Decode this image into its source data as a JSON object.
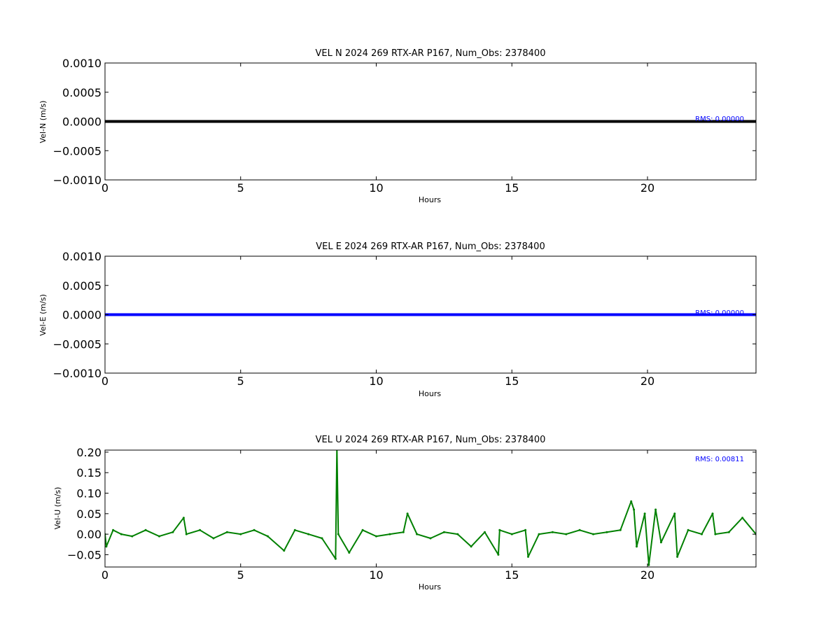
{
  "chart_data": [
    {
      "type": "line",
      "title": "VEL N 2024 269 RTX-AR  P167, Num_Obs: 2378400",
      "xlabel": "Hours",
      "ylabel": "Vel-N (m/s)",
      "xlim": [
        0,
        24
      ],
      "ylim": [
        -0.001,
        0.001
      ],
      "xticks": [
        "0",
        "5",
        "10",
        "15",
        "20"
      ],
      "yticks": [
        "−0.0010",
        "−0.0005",
        "0.0000",
        "0.0005",
        "0.0010"
      ],
      "grid": false,
      "series": [
        {
          "color": "#000000",
          "x": [
            0,
            2.0,
            2.05,
            4.0,
            4.05,
            8.95,
            9.0,
            24
          ],
          "y": [
            0,
            0,
            0,
            0,
            0,
            0,
            0,
            0
          ]
        }
      ],
      "annotation": "RMS:  0.00000"
    },
    {
      "type": "line",
      "title": "VEL E 2024 269 RTX-AR  P167, Num_Obs: 2378400",
      "xlabel": "Hours",
      "ylabel": "Vel-E (m/s)",
      "xlim": [
        0,
        24
      ],
      "ylim": [
        -0.001,
        0.001
      ],
      "xticks": [
        "0",
        "5",
        "10",
        "15",
        "20"
      ],
      "yticks": [
        "−0.0010",
        "−0.0005",
        "0.0000",
        "0.0005",
        "0.0010"
      ],
      "grid": false,
      "series": [
        {
          "color": "#0000ff",
          "x": [
            0,
            2.0,
            2.05,
            4.0,
            4.05,
            8.95,
            9.0,
            24
          ],
          "y": [
            0,
            0,
            0,
            0,
            0,
            0,
            0,
            0
          ]
        }
      ],
      "annotation": "RMS:  0.00000"
    },
    {
      "type": "line",
      "title": "VEL U 2024 269 RTX-AR  P167, Num_Obs: 2378400",
      "xlabel": "Hours",
      "ylabel": "Vel-U (m/s)",
      "xlim": [
        0,
        24
      ],
      "ylim": [
        -0.08,
        0.205
      ],
      "xticks": [
        "0",
        "5",
        "10",
        "15",
        "20"
      ],
      "yticks": [
        "−0.05",
        "0.00",
        "0.05",
        "0.10",
        "0.15",
        "0.20"
      ],
      "grid": false,
      "series": [
        {
          "color": "#008000",
          "x": [
            0,
            0.05,
            0.3,
            0.6,
            1.0,
            1.5,
            2.0,
            2.5,
            2.9,
            3.0,
            3.5,
            4.0,
            4.5,
            5.0,
            5.5,
            6.0,
            6.6,
            7.0,
            7.5,
            8.0,
            8.5,
            8.55,
            8.6,
            9.0,
            9.5,
            10.0,
            10.5,
            11.0,
            11.15,
            11.5,
            12.0,
            12.5,
            13.0,
            13.5,
            14.0,
            14.5,
            14.55,
            15.0,
            15.5,
            15.6,
            16.0,
            16.5,
            17.0,
            17.5,
            18.0,
            18.5,
            19.0,
            19.4,
            19.5,
            19.6,
            19.9,
            20.05,
            20.3,
            20.5,
            21.0,
            21.1,
            21.5,
            22.0,
            22.4,
            22.5,
            23.0,
            23.5,
            24.0
          ],
          "y": [
            0.0,
            -0.03,
            0.01,
            0.0,
            -0.005,
            0.01,
            -0.005,
            0.005,
            0.04,
            0.0,
            0.01,
            -0.01,
            0.005,
            0.0,
            0.01,
            -0.005,
            -0.04,
            0.01,
            0.0,
            -0.01,
            -0.06,
            0.21,
            0.0,
            -0.045,
            0.01,
            -0.005,
            0.0,
            0.005,
            0.05,
            0.0,
            -0.01,
            0.005,
            0.0,
            -0.03,
            0.005,
            -0.05,
            0.01,
            0.0,
            0.01,
            -0.055,
            0.0,
            0.005,
            0.0,
            0.01,
            0.0,
            0.005,
            0.01,
            0.08,
            0.06,
            -0.03,
            0.05,
            -0.075,
            0.06,
            -0.02,
            0.05,
            -0.055,
            0.01,
            0.0,
            0.05,
            0.0,
            0.005,
            0.04,
            0.0
          ]
        }
      ],
      "annotation": "RMS:  0.00811"
    }
  ]
}
